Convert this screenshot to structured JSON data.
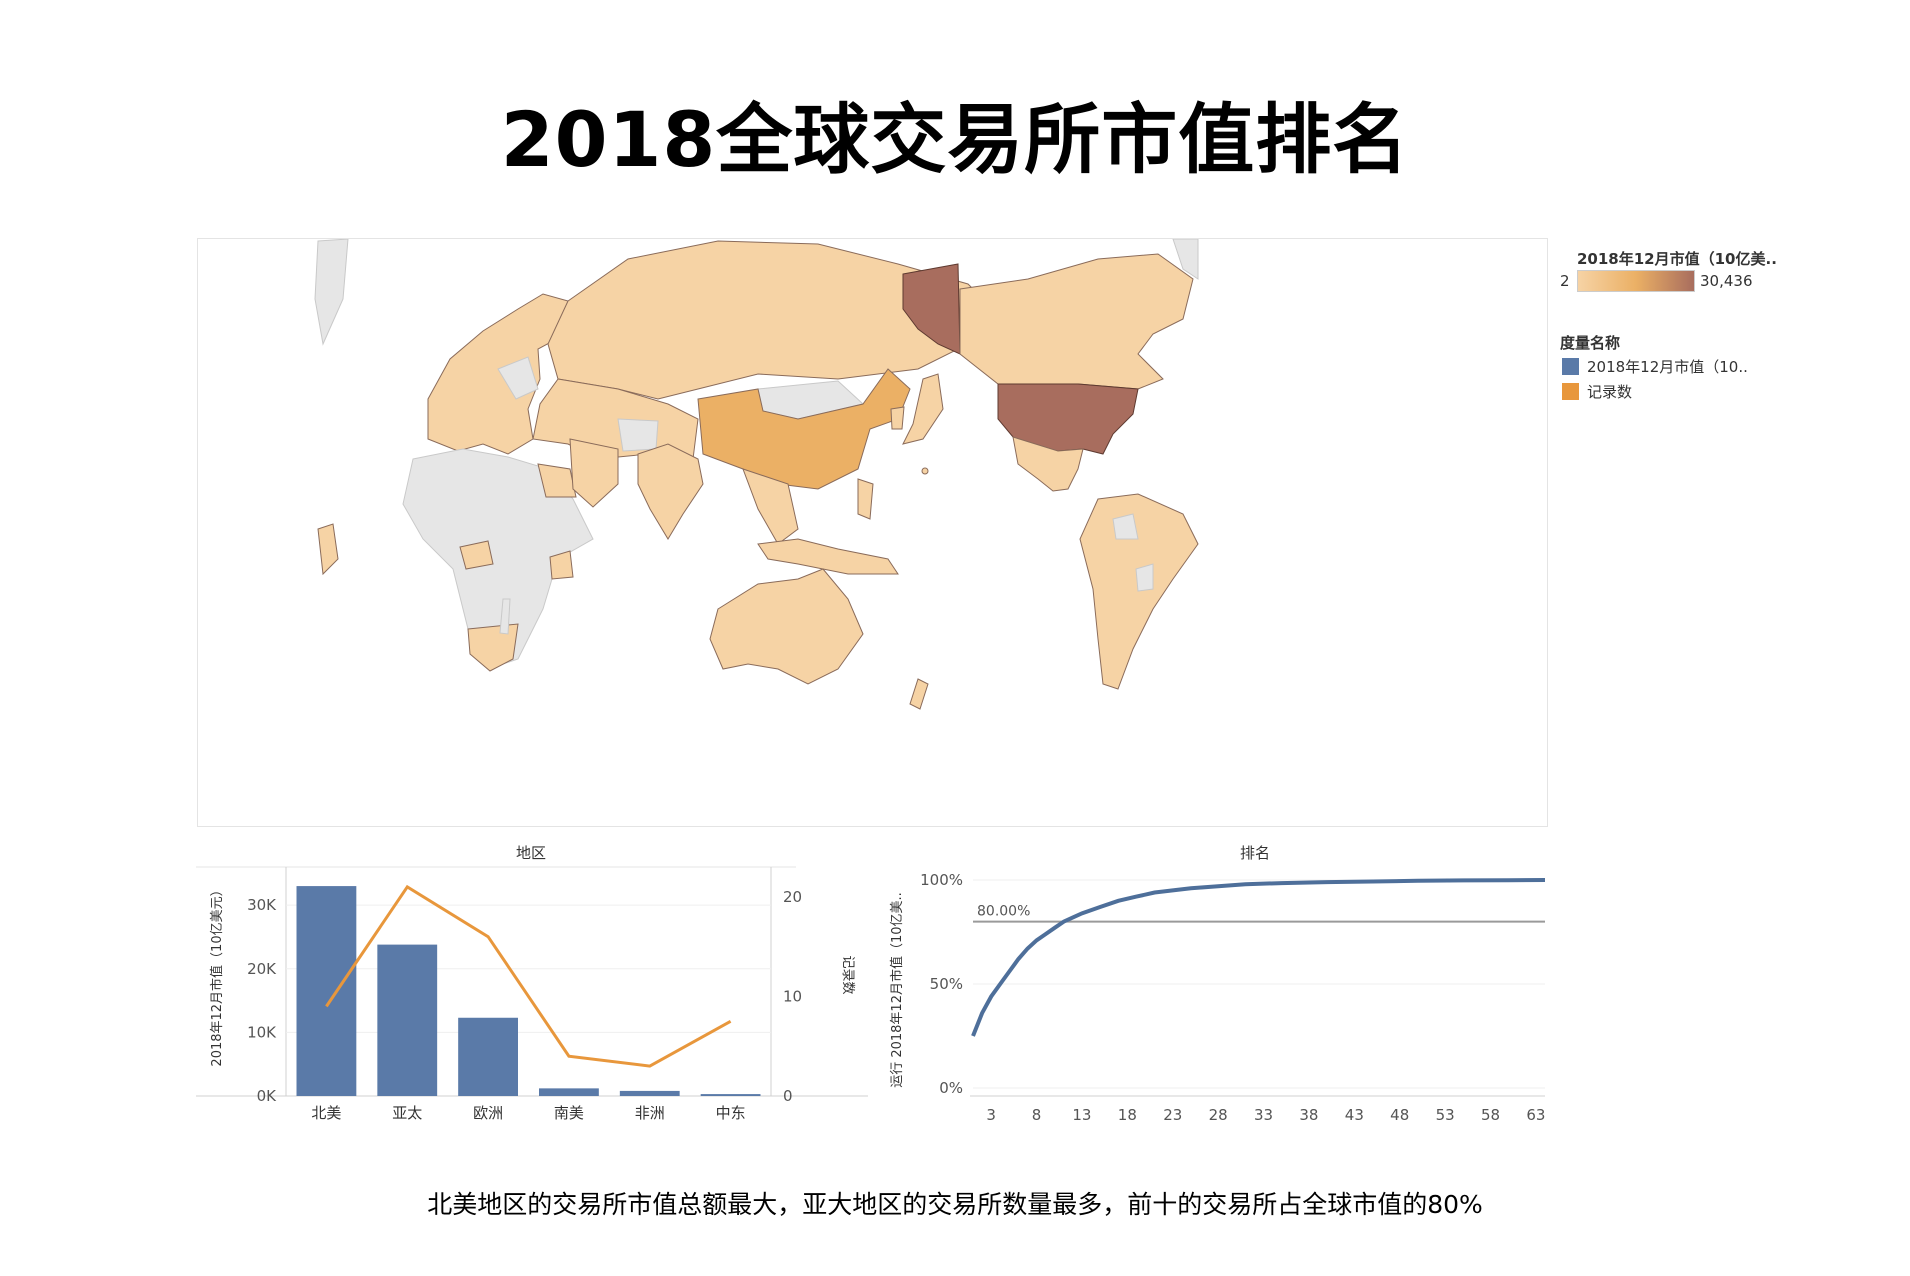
{
  "title": "2018全球交易所市值排名",
  "caption": "北美地区的交易所市值总额最大，亚大地区的交易所数量最多，前十的交易所占全球市值的80%",
  "colors": {
    "bar": "#5a7aa8",
    "line": "#e8973c",
    "map_low": "#f6d3a5",
    "map_mid": "#ebb065",
    "map_high": "#a86d5e",
    "map_nodata": "#e6e6e6",
    "curve": "#4e6f9a",
    "ref_line": "#9a9a9a"
  },
  "map_legend": {
    "title": "2018年12月市值（10亿美..",
    "min_label": "2",
    "max_label": "30,436"
  },
  "measure_legend": {
    "title": "度量名称",
    "items": [
      {
        "label": "2018年12月市值（10..",
        "color": "#5a7aa8"
      },
      {
        "label": "记录数",
        "color": "#e8973c"
      }
    ]
  },
  "chart_data": [
    {
      "type": "bar",
      "title": "地区",
      "categories": [
        "北美",
        "亚太",
        "欧洲",
        "南美",
        "非洲",
        "中东"
      ],
      "series": [
        {
          "name": "2018年12月市值（10亿美元）",
          "values": [
            33000,
            23800,
            12300,
            1200,
            800,
            300
          ],
          "mark": "bar",
          "axis": "left"
        },
        {
          "name": "记录数",
          "values": [
            9,
            21,
            16,
            4,
            3,
            7.5
          ],
          "mark": "line",
          "axis": "right"
        }
      ],
      "ylabel": "2018年12月市值（10亿美元）",
      "y2label": "记录数",
      "ylim": [
        0,
        36000
      ],
      "y_ticks": [
        "0K",
        "10K",
        "20K",
        "30K"
      ],
      "y2lim": [
        0,
        23
      ],
      "y2_ticks": [
        "0",
        "10",
        "20"
      ]
    },
    {
      "type": "line",
      "title": "排名",
      "ylabel": "运行 2018年12月市值（10亿美..",
      "xlim": [
        1,
        64
      ],
      "ylim": [
        0,
        1
      ],
      "x_ticks": [
        "3",
        "8",
        "13",
        "18",
        "23",
        "28",
        "33",
        "38",
        "43",
        "48",
        "53",
        "58",
        "63"
      ],
      "y_ticks": [
        "0%",
        "50%",
        "100%"
      ],
      "reference_line": {
        "value": 0.8,
        "label": "80.00%"
      },
      "x": [
        1,
        2,
        3,
        4,
        5,
        6,
        7,
        8,
        9,
        10,
        11,
        12,
        13,
        15,
        17,
        19,
        21,
        23,
        25,
        28,
        31,
        35,
        40,
        45,
        50,
        55,
        60,
        64
      ],
      "y": [
        0.25,
        0.36,
        0.44,
        0.5,
        0.56,
        0.62,
        0.67,
        0.71,
        0.74,
        0.77,
        0.8,
        0.82,
        0.84,
        0.87,
        0.9,
        0.92,
        0.94,
        0.95,
        0.96,
        0.97,
        0.98,
        0.985,
        0.99,
        0.993,
        0.996,
        0.998,
        0.999,
        1.0
      ]
    }
  ]
}
